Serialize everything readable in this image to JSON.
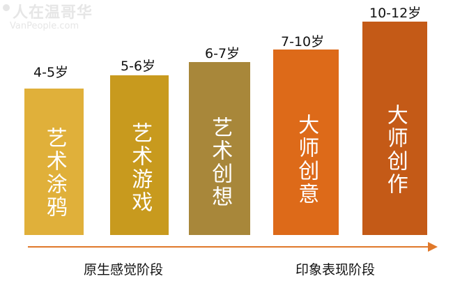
{
  "watermark": {
    "text": "人在温哥华",
    "sub": "VanPeople.com"
  },
  "stages": [
    {
      "age": "4-5岁",
      "label": "艺术涂鸦",
      "color": "#e0b03a"
    },
    {
      "age": "5-6岁",
      "label": "艺术游戏",
      "color": "#c89a1e"
    },
    {
      "age": "6-7岁",
      "label": "艺术创想",
      "color": "#a8873a"
    },
    {
      "age": "7-10岁",
      "label": "大师创意",
      "color": "#dd6a19"
    },
    {
      "age": "10-12岁",
      "label": "大师创作",
      "color": "#c45a17"
    }
  ],
  "phases": [
    {
      "label": "原生感觉阶段"
    },
    {
      "label": "印象表现阶段"
    }
  ],
  "colors": {
    "axis": "#e0782a"
  }
}
